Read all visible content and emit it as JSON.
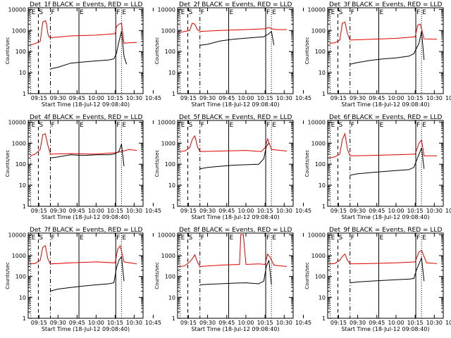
{
  "figure": {
    "colors": {
      "events": "#000000",
      "lld": "#e00000",
      "axis": "#000000"
    },
    "shared": {
      "ylabel": "Counts/sec",
      "xlabel": "Start Time (18-Jul-12 09:08:40)",
      "xticks": [
        "09:15",
        "09:30",
        "09:45",
        "10:00",
        "10:15",
        "10:30",
        "10:45"
      ],
      "yticks": [
        "1",
        "10",
        "100",
        "1000",
        "10000"
      ]
    }
  },
  "chart_data": [
    {
      "type": "line",
      "title": "Det_1f BLACK = Events, RED = LLD",
      "x_range_min": [
        6.5,
        97
      ],
      "ylim": [
        1,
        12000
      ],
      "yscale": "log",
      "markers": [
        "E",
        "S",
        "F",
        "E",
        "F",
        "E"
      ],
      "series": [
        {
          "name": "LLD",
          "color": "#e00000",
          "x": [
            8,
            12,
            16,
            18,
            20,
            21,
            22,
            23,
            24,
            40,
            60,
            75,
            76,
            78,
            80,
            82,
            86,
            92
          ],
          "y": [
            200,
            240,
            300,
            2500,
            2900,
            2000,
            700,
            500,
            450,
            550,
            600,
            700,
            1500,
            2000,
            2200,
            250,
            260,
            270
          ]
        },
        {
          "name": "Events",
          "color": "#000000",
          "x": [
            24,
            30,
            40,
            50,
            60,
            70,
            74,
            76,
            78,
            80,
            82,
            84
          ],
          "y": [
            15,
            18,
            28,
            32,
            36,
            40,
            45,
            80,
            300,
            900,
            60,
            25
          ]
        }
      ]
    },
    {
      "type": "line",
      "title": "Det_2f BLACK = Events, RED = LLD",
      "x_range_min": [
        6.5,
        97
      ],
      "ylim": [
        1,
        12000
      ],
      "yscale": "log",
      "markers": [
        "E",
        "S",
        "F",
        "E",
        "F",
        "E"
      ],
      "series": [
        {
          "name": "LLD",
          "color": "#e00000",
          "x": [
            8,
            12,
            16,
            18,
            20,
            22,
            24,
            40,
            60,
            75,
            78,
            80,
            84,
            92
          ],
          "y": [
            800,
            900,
            1000,
            2200,
            2000,
            1100,
            900,
            1000,
            1100,
            1200,
            1400,
            1200,
            1100,
            1100
          ]
        },
        {
          "name": "Events",
          "color": "#000000",
          "x": [
            24,
            30,
            40,
            50,
            60,
            70,
            74,
            78,
            80,
            82
          ],
          "y": [
            200,
            220,
            320,
            380,
            430,
            480,
            500,
            700,
            900,
            200
          ]
        }
      ]
    },
    {
      "type": "line",
      "title": "Det_3f BLACK = Events, RED = LLD",
      "x_range_min": [
        6.5,
        97
      ],
      "ylim": [
        1,
        12000
      ],
      "yscale": "log",
      "markers": [
        "E",
        "S",
        "F",
        "E",
        "F",
        "E"
      ],
      "series": [
        {
          "name": "LLD",
          "color": "#e00000",
          "x": [
            8,
            12,
            16,
            18,
            20,
            22,
            24,
            40,
            60,
            75,
            77,
            79,
            82,
            92
          ],
          "y": [
            250,
            260,
            350,
            2200,
            2500,
            700,
            350,
            380,
            420,
            500,
            1800,
            2000,
            400,
            380
          ]
        },
        {
          "name": "Events",
          "color": "#000000",
          "x": [
            24,
            30,
            40,
            50,
            60,
            70,
            74,
            78,
            80,
            82
          ],
          "y": [
            25,
            30,
            38,
            45,
            50,
            60,
            80,
            250,
            900,
            40
          ]
        }
      ]
    },
    {
      "type": "line",
      "title": "Det_4f BLACK = Events, RED = LLD",
      "x_range_min": [
        6.5,
        97
      ],
      "ylim": [
        1,
        12000
      ],
      "yscale": "log",
      "markers": [
        "E",
        "S",
        "F",
        "E",
        "F",
        "E"
      ],
      "series": [
        {
          "name": "LLD",
          "color": "#e00000",
          "x": [
            8,
            12,
            16,
            18,
            20,
            22,
            24,
            40,
            60,
            75,
            80,
            86,
            92
          ],
          "y": [
            250,
            300,
            500,
            2500,
            2800,
            800,
            300,
            320,
            300,
            350,
            400,
            500,
            450
          ]
        },
        {
          "name": "Events",
          "color": "#000000",
          "x": [
            24,
            30,
            40,
            50,
            60,
            70,
            74,
            78,
            80,
            82
          ],
          "y": [
            200,
            220,
            280,
            260,
            280,
            280,
            300,
            400,
            900,
            80
          ]
        }
      ]
    },
    {
      "type": "line",
      "title": "Det_5f BLACK = Events, RED = LLD",
      "x_range_min": [
        6.5,
        97
      ],
      "ylim": [
        1,
        12000
      ],
      "yscale": "log",
      "markers": [
        "E",
        "S",
        "F",
        "E",
        "F",
        "E"
      ],
      "series": [
        {
          "name": "LLD",
          "color": "#e00000",
          "x": [
            8,
            12,
            16,
            18,
            20,
            22,
            24,
            40,
            60,
            72,
            75,
            77,
            80,
            92
          ],
          "y": [
            400,
            420,
            600,
            1500,
            2200,
            700,
            400,
            420,
            450,
            400,
            600,
            1600,
            500,
            420
          ]
        },
        {
          "name": "Events",
          "color": "#000000",
          "x": [
            24,
            30,
            40,
            50,
            60,
            70,
            74,
            76,
            78
          ],
          "y": [
            60,
            70,
            80,
            90,
            95,
            100,
            180,
            700,
            1000
          ]
        }
      ]
    },
    {
      "type": "line",
      "title": "Det_6f BLACK = Events, RED = LLD",
      "x_range_min": [
        6.5,
        97
      ],
      "ylim": [
        1,
        12000
      ],
      "yscale": "log",
      "markers": [
        "E",
        "S",
        "F",
        "E",
        "F",
        "E"
      ],
      "series": [
        {
          "name": "LLD",
          "color": "#e00000",
          "x": [
            8,
            12,
            16,
            18,
            20,
            22,
            24,
            40,
            60,
            75,
            78,
            80,
            82,
            92
          ],
          "y": [
            200,
            220,
            300,
            1500,
            2800,
            500,
            250,
            260,
            280,
            300,
            1000,
            1400,
            250,
            250
          ]
        },
        {
          "name": "Events",
          "color": "#000000",
          "x": [
            24,
            30,
            40,
            50,
            60,
            70,
            74,
            78,
            80,
            82
          ],
          "y": [
            30,
            35,
            40,
            45,
            50,
            55,
            70,
            300,
            600,
            60
          ]
        }
      ]
    },
    {
      "type": "line",
      "title": "Det_7f BLACK = Events, RED = LLD",
      "x_range_min": [
        6.5,
        97
      ],
      "ylim": [
        1,
        12000
      ],
      "yscale": "log",
      "markers": [
        "E",
        "S",
        "F",
        "E",
        "F",
        "E"
      ],
      "series": [
        {
          "name": "LLD",
          "color": "#e00000",
          "x": [
            8,
            12,
            16,
            18,
            20,
            22,
            24,
            40,
            60,
            75,
            77,
            79,
            82,
            92
          ],
          "y": [
            400,
            420,
            600,
            2500,
            3000,
            700,
            400,
            450,
            500,
            450,
            2000,
            3000,
            500,
            400
          ]
        },
        {
          "name": "Events",
          "color": "#000000",
          "x": [
            24,
            30,
            40,
            50,
            60,
            70,
            74,
            76,
            78,
            80,
            82
          ],
          "y": [
            20,
            25,
            30,
            35,
            40,
            45,
            50,
            250,
            600,
            900,
            60
          ]
        }
      ]
    },
    {
      "type": "line",
      "title": "Det_8f BLACK = Events, RED = LLD",
      "x_range_min": [
        6.5,
        97
      ],
      "ylim": [
        1,
        12000
      ],
      "yscale": "log",
      "markers": [
        "E",
        "S",
        "F",
        "E",
        "F",
        "E"
      ],
      "series": [
        {
          "name": "LLD",
          "color": "#e00000",
          "x": [
            8,
            12,
            16,
            18,
            20,
            22,
            24,
            40,
            55,
            56,
            58,
            60,
            70,
            75,
            77,
            79,
            82,
            92
          ],
          "y": [
            300,
            320,
            500,
            700,
            1100,
            500,
            300,
            350,
            380,
            10000,
            10000,
            380,
            400,
            380,
            1200,
            800,
            350,
            300
          ]
        },
        {
          "name": "Events",
          "color": "#000000",
          "x": [
            24,
            30,
            40,
            50,
            60,
            70,
            74,
            76,
            78,
            80
          ],
          "y": [
            40,
            42,
            45,
            48,
            50,
            45,
            60,
            300,
            600,
            40
          ]
        }
      ]
    },
    {
      "type": "line",
      "title": "Det_9f BLACK = Events, RED = LLD",
      "x_range_min": [
        6.5,
        97
      ],
      "ylim": [
        1,
        12000
      ],
      "yscale": "log",
      "markers": [
        "E",
        "S",
        "F",
        "E",
        "F",
        "E"
      ],
      "series": [
        {
          "name": "LLD",
          "color": "#e00000",
          "x": [
            8,
            12,
            16,
            18,
            20,
            22,
            24,
            40,
            60,
            75,
            78,
            80,
            84,
            92
          ],
          "y": [
            400,
            420,
            600,
            900,
            1200,
            600,
            400,
            420,
            450,
            500,
            1500,
            1800,
            450,
            420
          ]
        },
        {
          "name": "Events",
          "color": "#000000",
          "x": [
            24,
            30,
            40,
            50,
            60,
            70,
            74,
            76,
            78,
            80,
            82
          ],
          "y": [
            50,
            55,
            60,
            65,
            70,
            75,
            80,
            200,
            400,
            800,
            60
          ]
        }
      ]
    }
  ]
}
